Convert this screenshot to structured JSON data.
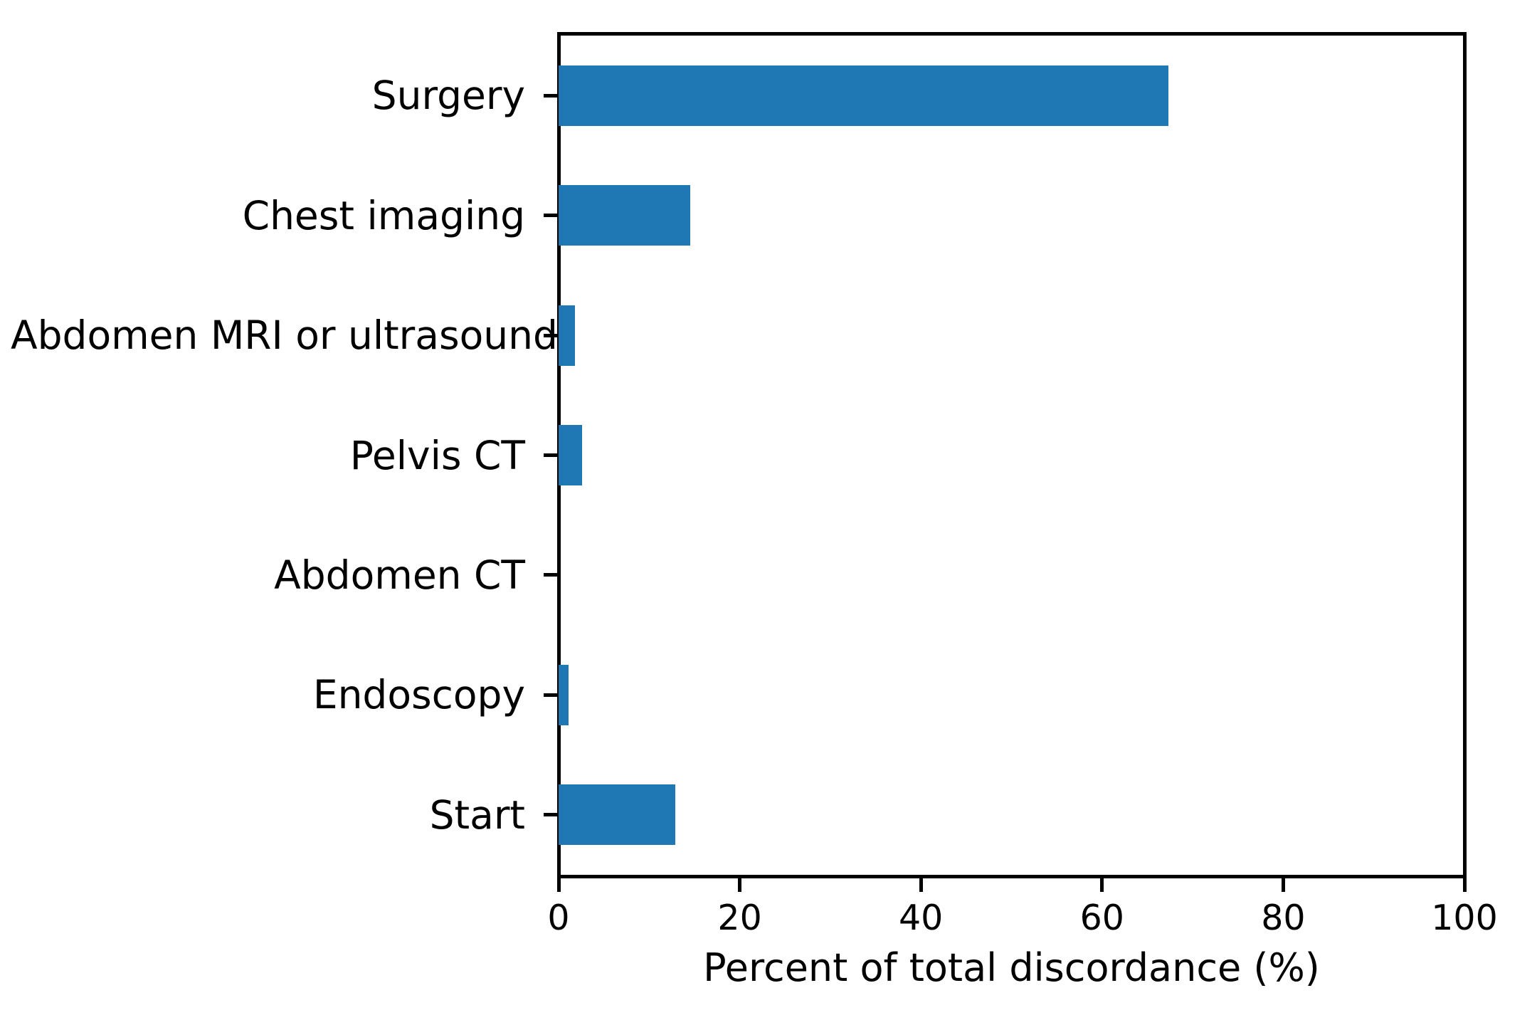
{
  "chart_data": {
    "type": "bar",
    "orientation": "horizontal",
    "title": "",
    "xlabel": "Percent of total discordance (%)",
    "ylabel": "",
    "categories": [
      "Surgery",
      "Chest imaging",
      "Abdomen MRI or ultrasound",
      "Pelvis CT",
      "Abdomen CT",
      "Endoscopy",
      "Start"
    ],
    "values": [
      67.3,
      14.5,
      1.8,
      2.6,
      0,
      1.1,
      12.9
    ],
    "xlim": [
      0,
      100
    ],
    "xticks": [
      0,
      20,
      40,
      60,
      80,
      100
    ],
    "grid": false,
    "legend": null,
    "bar_color": "#1f77b4"
  },
  "colors": {
    "bar": "#1f77b4",
    "axis": "#000000",
    "background": "#ffffff"
  }
}
